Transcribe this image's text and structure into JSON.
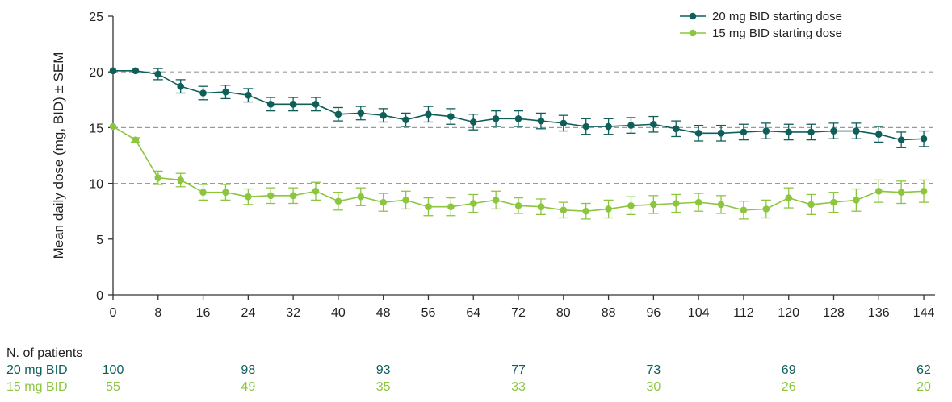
{
  "chart_data": {
    "type": "line",
    "title": "",
    "xlabel": "",
    "ylabel": "Mean daily dose (mg, BID) ± SEM",
    "xlim": [
      0,
      146
    ],
    "ylim": [
      0,
      25
    ],
    "x_ticks": [
      0,
      8,
      16,
      24,
      32,
      40,
      48,
      56,
      64,
      72,
      80,
      88,
      96,
      104,
      112,
      120,
      128,
      136,
      144
    ],
    "y_ticks": [
      0,
      5,
      10,
      15,
      20,
      25
    ],
    "reference_lines_y": [
      10,
      15,
      20
    ],
    "legend_position": "top-right",
    "series": [
      {
        "name": "20 mg BID starting dose",
        "color": "#0e5e5a",
        "x": [
          0,
          4,
          8,
          12,
          16,
          20,
          24,
          28,
          32,
          36,
          40,
          44,
          48,
          52,
          56,
          60,
          64,
          68,
          72,
          76,
          80,
          84,
          88,
          92,
          96,
          100,
          104,
          108,
          112,
          116,
          120,
          124,
          128,
          132,
          136,
          140,
          144
        ],
        "y": [
          20.1,
          20.1,
          19.8,
          18.7,
          18.1,
          18.2,
          17.9,
          17.1,
          17.1,
          17.1,
          16.2,
          16.3,
          16.1,
          15.7,
          16.2,
          16.0,
          15.5,
          15.8,
          15.8,
          15.6,
          15.4,
          15.1,
          15.1,
          15.2,
          15.3,
          14.9,
          14.5,
          14.5,
          14.6,
          14.7,
          14.6,
          14.6,
          14.7,
          14.7,
          14.4,
          13.9,
          14.0
        ],
        "sem": [
          0.0,
          0.0,
          0.5,
          0.6,
          0.6,
          0.6,
          0.6,
          0.6,
          0.6,
          0.6,
          0.6,
          0.6,
          0.6,
          0.6,
          0.7,
          0.7,
          0.7,
          0.7,
          0.7,
          0.7,
          0.7,
          0.7,
          0.7,
          0.7,
          0.7,
          0.7,
          0.7,
          0.7,
          0.7,
          0.7,
          0.7,
          0.7,
          0.7,
          0.7,
          0.7,
          0.7,
          0.7
        ]
      },
      {
        "name": "15 mg BID starting dose",
        "color": "#8cc63f",
        "x": [
          0,
          4,
          8,
          12,
          16,
          20,
          24,
          28,
          32,
          36,
          40,
          44,
          48,
          52,
          56,
          60,
          64,
          68,
          72,
          76,
          80,
          84,
          88,
          92,
          96,
          100,
          104,
          108,
          112,
          116,
          120,
          124,
          128,
          132,
          136,
          140,
          144
        ],
        "y": [
          15.1,
          13.9,
          10.5,
          10.3,
          9.2,
          9.2,
          8.8,
          8.9,
          8.9,
          9.3,
          8.4,
          8.8,
          8.3,
          8.5,
          7.9,
          7.9,
          8.2,
          8.5,
          8.0,
          7.9,
          7.6,
          7.5,
          7.7,
          8.0,
          8.1,
          8.2,
          8.3,
          8.1,
          7.6,
          7.7,
          8.7,
          8.1,
          8.3,
          8.5,
          9.3,
          9.2,
          9.3
        ],
        "sem": [
          0.0,
          0.2,
          0.6,
          0.6,
          0.7,
          0.7,
          0.7,
          0.7,
          0.7,
          0.8,
          0.8,
          0.8,
          0.8,
          0.8,
          0.8,
          0.8,
          0.8,
          0.8,
          0.7,
          0.7,
          0.7,
          0.7,
          0.8,
          0.8,
          0.8,
          0.8,
          0.8,
          0.8,
          0.8,
          0.8,
          0.9,
          0.9,
          0.9,
          1.0,
          1.0,
          1.0,
          1.0
        ]
      }
    ]
  },
  "patients_table": {
    "title": "N. of patients",
    "timepoints": [
      0,
      24,
      48,
      72,
      96,
      120,
      144
    ],
    "rows": [
      {
        "label": "20 mg BID",
        "color": "#0e5e5a",
        "values": [
          "100",
          "98",
          "93",
          "77",
          "73",
          "69",
          "62"
        ]
      },
      {
        "label": "15 mg BID",
        "color": "#8cc63f",
        "values": [
          "55",
          "49",
          "35",
          "33",
          "30",
          "26",
          "20"
        ]
      }
    ]
  }
}
